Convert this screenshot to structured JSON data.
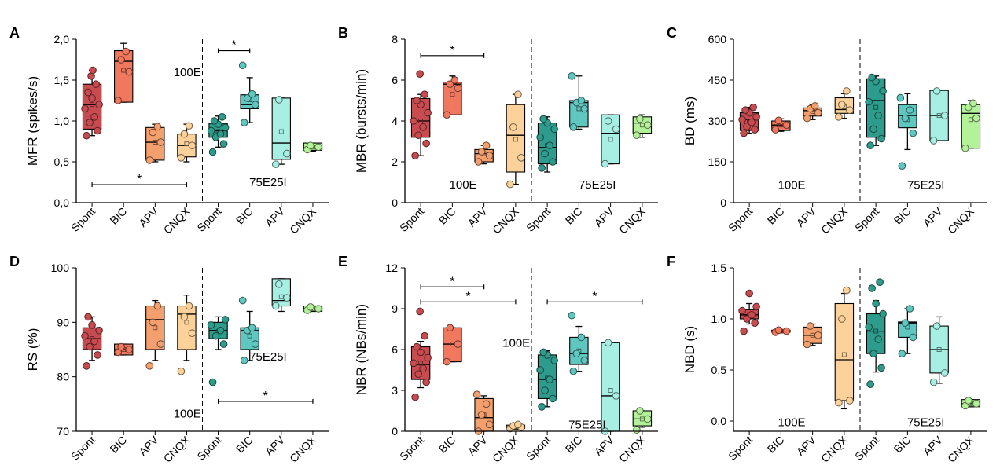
{
  "colors": {
    "spont100": "#c84b50",
    "bic100": "#f0785f",
    "apv100": "#f49f6e",
    "cnqx100": "#fcd29a",
    "spont75": "#2e9c8c",
    "bic75": "#60c7c0",
    "apv75": "#a7eee3",
    "cnqx75": "#b4f29a"
  },
  "chart_data": [
    {
      "type": "box",
      "panel": "A",
      "ylabel": "MFR (spikes/s)",
      "ylim": [
        0,
        2.0
      ],
      "yticks": [
        0,
        0.5,
        1.0,
        1.5,
        2.0
      ],
      "ytick_labels": [
        "0,0",
        "0,5",
        "1,0",
        "1,5",
        "2,0"
      ],
      "categories": [
        "Spont",
        "BIC",
        "APV",
        "CNQX",
        "Spont",
        "BIC",
        "APV",
        "CNQX"
      ],
      "groups": [
        {
          "label": "100E",
          "x": 0.44,
          "y": 1.55
        },
        {
          "label": "75E25I",
          "x": 0.76,
          "y": 0.2
        }
      ],
      "series": [
        {
          "color": "spont100",
          "q1": 0.9,
          "median": 1.2,
          "q3": 1.45,
          "wlo": 0.82,
          "whi": 1.62,
          "mean": 1.2,
          "points": [
            0.82,
            0.88,
            0.98,
            1.05,
            1.15,
            1.2,
            1.28,
            1.35,
            1.45,
            1.55,
            1.62
          ]
        },
        {
          "color": "bic100",
          "q1": 1.23,
          "median": 1.73,
          "q3": 1.86,
          "wlo": 1.23,
          "whi": 1.95,
          "mean": 1.62,
          "points": [
            1.25,
            1.6,
            1.75,
            1.85
          ]
        },
        {
          "color": "apv100",
          "q1": 0.52,
          "median": 0.74,
          "q3": 0.92,
          "wlo": 0.5,
          "whi": 0.96,
          "mean": 0.74,
          "points": [
            0.52,
            0.74,
            0.86,
            0.93
          ]
        },
        {
          "color": "cnqx100",
          "q1": 0.56,
          "median": 0.7,
          "q3": 0.84,
          "wlo": 0.5,
          "whi": 0.96,
          "mean": 0.72,
          "points": [
            0.55,
            0.7,
            0.84,
            0.94
          ]
        },
        {
          "color": "spont75",
          "q1": 0.8,
          "median": 0.88,
          "q3": 0.97,
          "wlo": 0.68,
          "whi": 1.06,
          "mean": 0.87,
          "points": [
            0.62,
            0.72,
            0.8,
            0.84,
            0.88,
            0.92,
            0.96,
            1.0,
            1.05
          ]
        },
        {
          "color": "bic75",
          "q1": 1.15,
          "median": 1.2,
          "q3": 1.32,
          "wlo": 0.98,
          "whi": 1.53,
          "mean": 1.26,
          "points": [
            0.98,
            1.2,
            1.28,
            1.33,
            1.68
          ]
        },
        {
          "color": "apv75",
          "q1": 0.53,
          "median": 0.73,
          "q3": 1.28,
          "wlo": 0.47,
          "whi": 1.28,
          "mean": 0.87,
          "points": [
            0.47,
            0.6,
            1.26
          ]
        },
        {
          "color": "cnqx75",
          "q1": 0.64,
          "median": 0.67,
          "q3": 0.73,
          "wlo": 0.63,
          "whi": 0.73,
          "mean": 0.68,
          "points": [
            0.65,
            0.68,
            0.7
          ]
        }
      ],
      "brackets": [
        {
          "from": 0,
          "to": 3,
          "y": 0.22,
          "label": "*"
        },
        {
          "from": 4,
          "to": 5,
          "y": 1.86,
          "label": "*"
        }
      ]
    },
    {
      "type": "box",
      "panel": "B",
      "ylabel": "MBR (bursts/min)",
      "ylim": [
        0,
        8
      ],
      "yticks": [
        0,
        2,
        4,
        6,
        8
      ],
      "ytick_labels": [
        "0",
        "2",
        "4",
        "6",
        "8"
      ],
      "categories": [
        "Spont",
        "BIC",
        "APV",
        "CNQX",
        "Spont",
        "BIC",
        "APV",
        "CNQX"
      ],
      "groups": [
        {
          "label": "100E",
          "x": 0.23,
          "y": 0.7
        },
        {
          "label": "75E25I",
          "x": 0.76,
          "y": 0.7
        }
      ],
      "series": [
        {
          "color": "spont100",
          "q1": 3.2,
          "median": 4.0,
          "q3": 5.1,
          "wlo": 2.3,
          "whi": 5.3,
          "mean": 4.0,
          "points": [
            2.3,
            2.9,
            3.3,
            3.7,
            4.0,
            4.4,
            4.8,
            5.0,
            5.3,
            6.3
          ]
        },
        {
          "color": "bic100",
          "q1": 4.3,
          "median": 5.8,
          "q3": 5.9,
          "wlo": 4.3,
          "whi": 6.2,
          "mean": 5.3,
          "points": [
            4.3,
            5.6,
            5.8,
            6.0
          ]
        },
        {
          "color": "apv100",
          "q1": 2.0,
          "median": 2.4,
          "q3": 2.6,
          "wlo": 1.9,
          "whi": 2.8,
          "mean": 2.4,
          "points": [
            2.0,
            2.3,
            2.5,
            2.8
          ]
        },
        {
          "color": "cnqx100",
          "q1": 1.5,
          "median": 3.3,
          "q3": 4.8,
          "wlo": 0.9,
          "whi": 5.3,
          "mean": 3.1,
          "points": [
            0.9,
            2.2,
            3.7,
            5.3
          ]
        },
        {
          "color": "spont75",
          "q1": 1.9,
          "median": 2.7,
          "q3": 3.9,
          "wlo": 1.5,
          "whi": 4.2,
          "mean": 2.8,
          "points": [
            1.7,
            2.0,
            2.4,
            2.8,
            3.2,
            3.6,
            3.9,
            4.1
          ]
        },
        {
          "color": "bic75",
          "q1": 3.7,
          "median": 4.9,
          "q3": 5.0,
          "wlo": 3.6,
          "whi": 6.2,
          "mean": 4.6,
          "points": [
            3.7,
            4.6,
            4.9,
            5.0,
            6.2
          ]
        },
        {
          "color": "apv75",
          "q1": 1.9,
          "median": 3.4,
          "q3": 4.3,
          "wlo": 1.9,
          "whi": 4.3,
          "mean": 3.1,
          "points": [
            1.9,
            3.6,
            4.0
          ]
        },
        {
          "color": "cnqx75",
          "q1": 3.4,
          "median": 3.9,
          "q3": 4.2,
          "wlo": 3.2,
          "whi": 4.3,
          "mean": 3.8,
          "points": [
            3.3,
            3.8,
            4.1
          ]
        }
      ],
      "brackets": [
        {
          "from": 0,
          "to": 2,
          "y": 7.2,
          "label": "*"
        }
      ]
    },
    {
      "type": "box",
      "panel": "C",
      "ylabel": "BD (ms)",
      "ylim": [
        0,
        600
      ],
      "yticks": [
        0,
        150,
        300,
        450,
        600
      ],
      "ytick_labels": [
        "0",
        "150",
        "300",
        "450",
        "600"
      ],
      "categories": [
        "Spont",
        "BIC",
        "APV",
        "CNQX",
        "Spont",
        "BIC",
        "APV",
        "CNQX"
      ],
      "groups": [
        {
          "label": "100E",
          "x": 0.23,
          "y": 50
        },
        {
          "label": "75E25I",
          "x": 0.76,
          "y": 50
        }
      ],
      "series": [
        {
          "color": "spont100",
          "q1": 265,
          "median": 305,
          "q3": 330,
          "wlo": 255,
          "whi": 350,
          "mean": 300,
          "points": [
            255,
            268,
            280,
            295,
            305,
            315,
            330,
            340,
            350
          ]
        },
        {
          "color": "bic100",
          "q1": 265,
          "median": 285,
          "q3": 300,
          "wlo": 262,
          "whi": 308,
          "mean": 285,
          "points": [
            268,
            285,
            302
          ]
        },
        {
          "color": "apv100",
          "q1": 318,
          "median": 338,
          "q3": 348,
          "wlo": 305,
          "whi": 360,
          "mean": 335,
          "points": [
            310,
            330,
            345,
            355
          ]
        },
        {
          "color": "cnqx100",
          "q1": 328,
          "median": 342,
          "q3": 385,
          "wlo": 310,
          "whi": 400,
          "mean": 352,
          "points": [
            315,
            340,
            360,
            410
          ]
        },
        {
          "color": "spont75",
          "q1": 240,
          "median": 375,
          "q3": 455,
          "wlo": 210,
          "whi": 465,
          "mean": 350,
          "points": [
            210,
            235,
            270,
            320,
            370,
            410,
            445,
            460
          ]
        },
        {
          "color": "bic75",
          "q1": 275,
          "median": 320,
          "q3": 360,
          "wlo": 195,
          "whi": 400,
          "mean": 305,
          "points": [
            135,
            255,
            310,
            340,
            385
          ]
        },
        {
          "color": "apv75",
          "q1": 228,
          "median": 320,
          "q3": 412,
          "wlo": 228,
          "whi": 412,
          "mean": 320,
          "points": [
            228,
            320,
            410
          ]
        },
        {
          "color": "cnqx75",
          "q1": 200,
          "median": 328,
          "q3": 360,
          "wlo": 200,
          "whi": 375,
          "mean": 305,
          "points": [
            200,
            310,
            350,
            365
          ]
        }
      ],
      "brackets": []
    },
    {
      "type": "box",
      "panel": "D",
      "ylabel": "RS (%)",
      "ylim": [
        70,
        100
      ],
      "yticks": [
        70,
        80,
        90,
        100
      ],
      "ytick_labels": [
        "70",
        "80",
        "90",
        "100"
      ],
      "categories": [
        "Spont",
        "BIC",
        "APV",
        "CNQX",
        "Spont",
        "BIC",
        "APV",
        "CNQX"
      ],
      "groups": [
        {
          "label": "100E",
          "x": 0.44,
          "y": 72.5
        },
        {
          "label": "75E25I",
          "x": 0.76,
          "y": 83
        }
      ],
      "series": [
        {
          "color": "spont100",
          "q1": 85,
          "median": 87,
          "q3": 89,
          "wlo": 83,
          "whi": 91,
          "mean": 87,
          "points": [
            82,
            84,
            85.5,
            86.5,
            87.5,
            88.5,
            89.5,
            91
          ]
        },
        {
          "color": "bic100",
          "q1": 84,
          "median": 85,
          "q3": 86,
          "wlo": 84,
          "whi": 86,
          "mean": 85,
          "points": [
            84.5,
            85,
            85.5
          ]
        },
        {
          "color": "apv100",
          "q1": 85,
          "median": 90.5,
          "q3": 93,
          "wlo": 83,
          "whi": 94,
          "mean": 89,
          "points": [
            82,
            86,
            90,
            93
          ]
        },
        {
          "color": "cnqx100",
          "q1": 85,
          "median": 91.5,
          "q3": 93,
          "wlo": 83,
          "whi": 95,
          "mean": 90,
          "points": [
            81,
            88,
            91,
            93
          ]
        },
        {
          "color": "spont75",
          "q1": 87,
          "median": 88.5,
          "q3": 90,
          "wlo": 85,
          "whi": 91,
          "mean": 88.3,
          "points": [
            79,
            86,
            87.5,
            88.5,
            89.5,
            90.5
          ]
        },
        {
          "color": "bic75",
          "q1": 85,
          "median": 88.5,
          "q3": 89,
          "wlo": 83,
          "whi": 92,
          "mean": 87.5,
          "points": [
            83,
            86,
            88.5,
            89,
            94
          ]
        },
        {
          "color": "apv75",
          "q1": 93,
          "median": 94,
          "q3": 98,
          "wlo": 92,
          "whi": 98,
          "mean": 94.7,
          "points": [
            93,
            94.5,
            97
          ]
        },
        {
          "color": "cnqx75",
          "q1": 92,
          "median": 92.5,
          "q3": 93,
          "wlo": 92,
          "whi": 93,
          "mean": 92.5,
          "points": [
            92.2,
            92.5,
            92.8
          ]
        }
      ],
      "brackets": [
        {
          "from": 4,
          "to": 7,
          "y": 75.5,
          "label": "*"
        }
      ]
    },
    {
      "type": "box",
      "panel": "E",
      "ylabel": "NBR (NBs/min)",
      "ylim": [
        0,
        12
      ],
      "yticks": [
        0,
        3,
        6,
        9,
        12
      ],
      "ytick_labels": [
        "0",
        "3",
        "6",
        "9",
        "12"
      ],
      "categories": [
        "Spont",
        "BIC",
        "APV",
        "CNQX",
        "Spont",
        "BIC",
        "APV",
        "CNQX"
      ],
      "groups": [
        {
          "label": "100E",
          "x": 0.44,
          "y": 6.2
        },
        {
          "label": "75E25I",
          "x": 0.72,
          "y": 0.2
        }
      ],
      "series": [
        {
          "color": "spont100",
          "q1": 3.8,
          "median": 4.9,
          "q3": 6.2,
          "wlo": 3.2,
          "whi": 6.6,
          "mean": 5.0,
          "points": [
            2.5,
            3.6,
            4.2,
            4.6,
            5.0,
            5.4,
            5.8,
            6.2,
            7.0,
            8.8
          ]
        },
        {
          "color": "bic100",
          "q1": 5.1,
          "median": 6.4,
          "q3": 7.6,
          "wlo": 5.1,
          "whi": 7.6,
          "mean": 6.4,
          "points": [
            5.1,
            6.4,
            7.6
          ]
        },
        {
          "color": "apv100",
          "q1": 0.0,
          "median": 1.0,
          "q3": 2.4,
          "wlo": 0.0,
          "whi": 2.6,
          "mean": 1.2,
          "points": [
            0.0,
            0.5,
            1.2,
            2.0,
            2.7
          ]
        },
        {
          "color": "cnqx100",
          "q1": 0.2,
          "median": 0.3,
          "q3": 0.45,
          "wlo": 0.15,
          "whi": 0.55,
          "mean": 0.32,
          "points": [
            0.2,
            0.3,
            0.4,
            0.5
          ]
        },
        {
          "color": "spont75",
          "q1": 2.4,
          "median": 3.8,
          "q3": 5.6,
          "wlo": 1.8,
          "whi": 5.9,
          "mean": 3.9,
          "points": [
            1.8,
            2.4,
            3.0,
            3.8,
            4.5,
            5.2,
            5.6,
            5.8
          ]
        },
        {
          "color": "bic75",
          "q1": 4.9,
          "median": 5.7,
          "q3": 6.9,
          "wlo": 4.4,
          "whi": 7.7,
          "mean": 5.9,
          "points": [
            4.4,
            5.2,
            5.7,
            6.9,
            8.5
          ]
        },
        {
          "color": "apv75",
          "q1": 0.0,
          "median": 2.6,
          "q3": 6.5,
          "wlo": 0.0,
          "whi": 6.5,
          "mean": 3.0,
          "points": [
            0.0,
            2.6,
            6.5
          ]
        },
        {
          "color": "cnqx75",
          "q1": 0.4,
          "median": 0.9,
          "q3": 1.5,
          "wlo": 0.3,
          "whi": 1.5,
          "mean": 0.9,
          "points": [
            0.1,
            0.9,
            1.5
          ]
        }
      ],
      "brackets": [
        {
          "from": 0,
          "to": 2,
          "y": 10.6,
          "label": "*"
        },
        {
          "from": 0,
          "to": 3,
          "y": 9.5,
          "label": "*"
        },
        {
          "from": 4,
          "to": 7,
          "y": 9.5,
          "label": "*"
        }
      ]
    },
    {
      "type": "box",
      "panel": "F",
      "ylabel": "NBD (s)",
      "ylim": [
        -0.1,
        1.5
      ],
      "yticks": [
        0,
        0.5,
        1.0,
        1.5
      ],
      "ytick_labels": [
        "0,0",
        "0,5",
        "1,0",
        "1,5"
      ],
      "categories": [
        "Spont",
        "BIC",
        "APV",
        "CNQX",
        "Spont",
        "BIC",
        "APV",
        "CNQX"
      ],
      "groups": [
        {
          "label": "100E",
          "x": 0.23,
          "y": -0.05
        },
        {
          "label": "75E25I",
          "x": 0.76,
          "y": -0.05
        }
      ],
      "series": [
        {
          "color": "spont100",
          "q1": 1.0,
          "median": 1.04,
          "q3": 1.09,
          "wlo": 0.95,
          "whi": 1.15,
          "mean": 1.04,
          "points": [
            0.88,
            0.96,
            1.0,
            1.04,
            1.08,
            1.12,
            1.25
          ]
        },
        {
          "color": "bic100",
          "q1": 0.87,
          "median": 0.88,
          "q3": 0.89,
          "wlo": 0.87,
          "whi": 0.89,
          "mean": 0.88,
          "points": [
            0.87,
            0.88,
            0.89
          ]
        },
        {
          "color": "apv100",
          "q1": 0.76,
          "median": 0.84,
          "q3": 0.92,
          "wlo": 0.74,
          "whi": 0.95,
          "mean": 0.84,
          "points": [
            0.75,
            0.84,
            0.93
          ]
        },
        {
          "color": "cnqx100",
          "q1": 0.2,
          "median": 0.6,
          "q3": 1.15,
          "wlo": 0.12,
          "whi": 1.25,
          "mean": 0.65,
          "points": [
            0.18,
            0.2,
            1.0,
            1.28
          ]
        },
        {
          "color": "spont75",
          "q1": 0.66,
          "median": 0.88,
          "q3": 1.05,
          "wlo": 0.48,
          "whi": 1.18,
          "mean": 0.88,
          "points": [
            0.36,
            0.52,
            0.66,
            0.8,
            0.92,
            1.05,
            1.15,
            1.3,
            1.36
          ]
        },
        {
          "color": "bic75",
          "q1": 0.82,
          "median": 0.96,
          "q3": 0.97,
          "wlo": 0.66,
          "whi": 1.1,
          "mean": 0.92,
          "points": [
            0.66,
            0.82,
            0.96,
            1.1
          ]
        },
        {
          "color": "apv75",
          "q1": 0.47,
          "median": 0.7,
          "q3": 0.93,
          "wlo": 0.37,
          "whi": 1.02,
          "mean": 0.7,
          "points": [
            0.38,
            0.47,
            0.93
          ]
        },
        {
          "color": "cnqx75",
          "q1": 0.14,
          "median": 0.17,
          "q3": 0.21,
          "wlo": 0.14,
          "whi": 0.21,
          "mean": 0.17,
          "points": [
            0.15,
            0.17,
            0.2
          ]
        }
      ],
      "brackets": []
    }
  ]
}
